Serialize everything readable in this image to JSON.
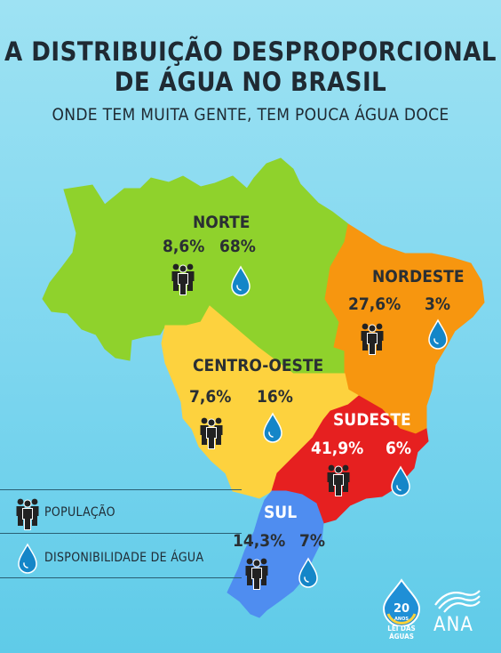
{
  "title_line1": "A DISTRIBUIÇÃO DESPROPORCIONAL",
  "title_line2": "DE ÁGUA NO BRASIL",
  "subtitle": "ONDE TEM MUITA GENTE, TEM POUCA ÁGUA DOCE",
  "colors": {
    "norte": "#8fd22c",
    "nordeste": "#f7960f",
    "centro_oeste": "#fdd23e",
    "sudeste": "#e62020",
    "sul": "#4f8df0",
    "drop": "#1486c8"
  },
  "regions": {
    "norte": {
      "name": "NORTE",
      "population": "8,6%",
      "water": "68%"
    },
    "nordeste": {
      "name": "NORDESTE",
      "population": "27,6%",
      "water": "3%"
    },
    "centro_oeste": {
      "name": "CENTRO-OESTE",
      "population": "7,6%",
      "water": "16%"
    },
    "sudeste": {
      "name": "SUDESTE",
      "population": "41,9%",
      "water": "6%"
    },
    "sul": {
      "name": "SUL",
      "population": "14,3%",
      "water": "7%"
    }
  },
  "legend": {
    "population_label": "POPULAÇÃO",
    "water_label": "DISPONIBILIDADE DE ÁGUA",
    "population_icon": "people-icon",
    "water_icon": "water-drop-icon"
  },
  "logos": {
    "years_badge_number": "20",
    "years_badge_word": "ANOS",
    "years_badge_caption": "LEI DAS ÁGUAS",
    "agency": "ANA"
  }
}
